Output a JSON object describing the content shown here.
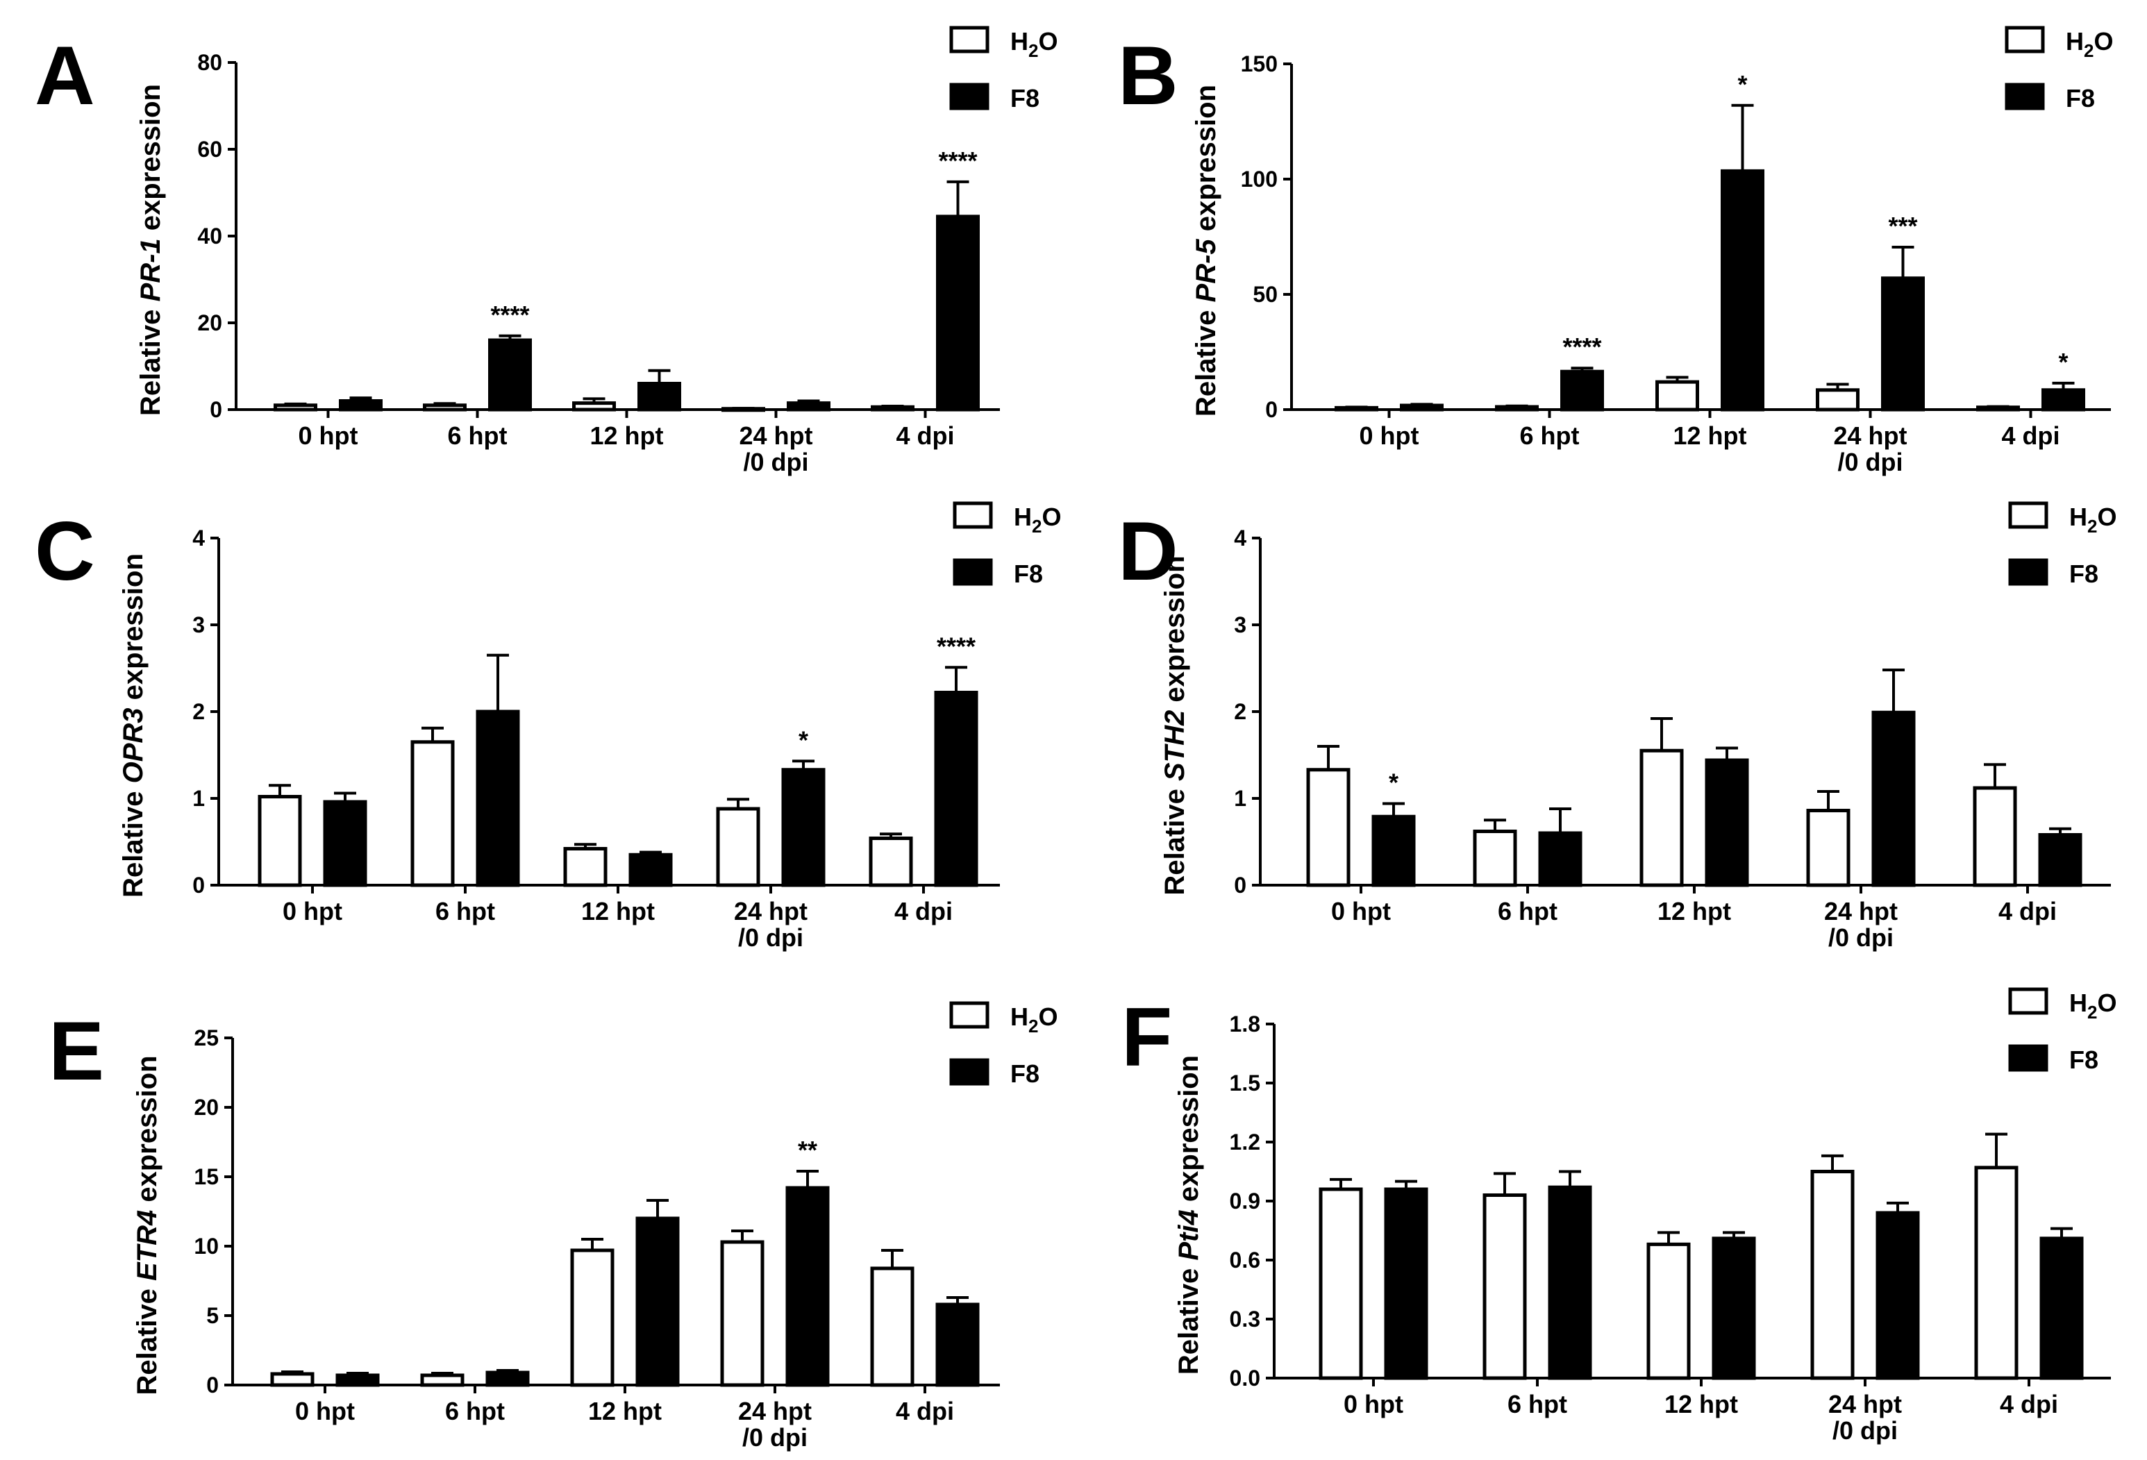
{
  "legend": {
    "series": [
      "H2O",
      "F8"
    ],
    "h2o_main": "H",
    "h2o_sub": "2",
    "h2o_tail": "O",
    "f8": "F8"
  },
  "colors": {
    "h2o_fill": "#ffffff",
    "f8_fill": "#000000",
    "stroke": "#000000"
  },
  "chart_data": [
    {
      "panel": "A",
      "type": "bar",
      "ylabel": {
        "prefix": "Relative ",
        "gene": "PR-1",
        "suffix": " expression"
      },
      "categories": [
        [
          "0 hpt"
        ],
        [
          "6 hpt"
        ],
        [
          "12 hpt"
        ],
        [
          "24 hpt",
          "/0 dpi"
        ],
        [
          "4 dpi"
        ]
      ],
      "ylim": [
        0,
        80
      ],
      "yticks": [
        "0",
        "20",
        "40",
        "60",
        "80"
      ],
      "series": [
        {
          "name": "H2O",
          "values": [
            1.0,
            1.0,
            1.5,
            0.2,
            0.6
          ],
          "errors": [
            0.3,
            0.4,
            1.0,
            0.1,
            0.2
          ]
        },
        {
          "name": "F8",
          "values": [
            2.0,
            16.0,
            6.0,
            1.5,
            44.5
          ],
          "errors": [
            0.7,
            1.0,
            3.0,
            0.5,
            8.0
          ]
        }
      ],
      "significance": [
        "",
        "****",
        "",
        "",
        "****"
      ]
    },
    {
      "panel": "B",
      "type": "bar",
      "ylabel": {
        "prefix": "Relative ",
        "gene": "PR-5",
        "suffix": " expression"
      },
      "categories": [
        [
          "0 hpt"
        ],
        [
          "6 hpt"
        ],
        [
          "12 hpt"
        ],
        [
          "24 hpt",
          "/0 dpi"
        ],
        [
          "4 dpi"
        ]
      ],
      "ylim": [
        0,
        150
      ],
      "yticks": [
        "0",
        "50",
        "100",
        "150"
      ],
      "series": [
        {
          "name": "H2O",
          "values": [
            0.8,
            1.2,
            12.0,
            8.5,
            1.0
          ],
          "errors": [
            0.3,
            0.4,
            2.0,
            2.5,
            0.3
          ]
        },
        {
          "name": "F8",
          "values": [
            1.8,
            16.5,
            103.5,
            57.0,
            8.5
          ],
          "errors": [
            0.5,
            1.5,
            28.5,
            13.5,
            3.0
          ]
        }
      ],
      "significance": [
        "",
        "****",
        "*",
        "***",
        "*"
      ]
    },
    {
      "panel": "C",
      "type": "bar",
      "ylabel": {
        "prefix": "Relative ",
        "gene": "OPR3",
        "suffix": " expression"
      },
      "categories": [
        [
          "0 hpt"
        ],
        [
          "6 hpt"
        ],
        [
          "12 hpt"
        ],
        [
          "24 hpt",
          "/0 dpi"
        ],
        [
          "4 dpi"
        ]
      ],
      "ylim": [
        0,
        4
      ],
      "yticks": [
        "0",
        "1",
        "2",
        "3",
        "4"
      ],
      "series": [
        {
          "name": "H2O",
          "values": [
            1.02,
            1.65,
            0.42,
            0.88,
            0.54
          ],
          "errors": [
            0.13,
            0.16,
            0.05,
            0.11,
            0.05
          ]
        },
        {
          "name": "F8",
          "values": [
            0.96,
            2.0,
            0.35,
            1.33,
            2.22
          ],
          "errors": [
            0.1,
            0.65,
            0.03,
            0.1,
            0.29
          ]
        }
      ],
      "significance": [
        "",
        "",
        "",
        "*",
        "****"
      ]
    },
    {
      "panel": "D",
      "type": "bar",
      "ylabel": {
        "prefix": "Relative ",
        "gene": "STH2",
        "suffix": " expression"
      },
      "categories": [
        [
          "0 hpt"
        ],
        [
          "6 hpt"
        ],
        [
          "12 hpt"
        ],
        [
          "24 hpt",
          "/0 dpi"
        ],
        [
          "4 dpi"
        ]
      ],
      "ylim": [
        0,
        4
      ],
      "yticks": [
        "0",
        "1",
        "2",
        "3",
        "4"
      ],
      "series": [
        {
          "name": "H2O",
          "values": [
            1.33,
            0.62,
            1.55,
            0.86,
            1.12
          ],
          "errors": [
            0.27,
            0.13,
            0.37,
            0.22,
            0.27
          ]
        },
        {
          "name": "F8",
          "values": [
            0.79,
            0.6,
            1.44,
            1.99,
            0.58
          ],
          "errors": [
            0.15,
            0.28,
            0.14,
            0.49,
            0.07
          ]
        }
      ],
      "significance": [
        "*",
        "",
        "",
        "",
        ""
      ]
    },
    {
      "panel": "E",
      "type": "bar",
      "ylabel": {
        "prefix": "Relative ",
        "gene": "ETR4",
        "suffix": " expression"
      },
      "categories": [
        [
          "0 hpt"
        ],
        [
          "6 hpt"
        ],
        [
          "12 hpt"
        ],
        [
          "24 hpt",
          "/0 dpi"
        ],
        [
          "4 dpi"
        ]
      ],
      "ylim": [
        0,
        25
      ],
      "yticks": [
        "0",
        "5",
        "10",
        "15",
        "20",
        "25"
      ],
      "series": [
        {
          "name": "H2O",
          "values": [
            0.8,
            0.7,
            9.7,
            10.3,
            8.4
          ],
          "errors": [
            0.15,
            0.15,
            0.8,
            0.8,
            1.3
          ]
        },
        {
          "name": "F8",
          "values": [
            0.7,
            0.9,
            12.0,
            14.2,
            5.8
          ],
          "errors": [
            0.15,
            0.15,
            1.3,
            1.2,
            0.5
          ]
        }
      ],
      "significance": [
        "",
        "",
        "",
        "**",
        ""
      ]
    },
    {
      "panel": "F",
      "type": "bar",
      "ylabel": {
        "prefix": "Relative ",
        "gene": "Pti4",
        "suffix": " expression"
      },
      "categories": [
        [
          "0 hpt"
        ],
        [
          "6 hpt"
        ],
        [
          "12 hpt"
        ],
        [
          "24 hpt",
          "/0 dpi"
        ],
        [
          "4 dpi"
        ]
      ],
      "ylim": [
        0,
        1.8
      ],
      "yticks": [
        "0.0",
        "0.3",
        "0.6",
        "0.9",
        "1.2",
        "1.5",
        "1.8"
      ],
      "series": [
        {
          "name": "H2O",
          "values": [
            0.96,
            0.93,
            0.68,
            1.05,
            1.07
          ],
          "errors": [
            0.05,
            0.11,
            0.06,
            0.08,
            0.17
          ]
        },
        {
          "name": "F8",
          "values": [
            0.96,
            0.97,
            0.71,
            0.84,
            0.71
          ],
          "errors": [
            0.04,
            0.08,
            0.03,
            0.05,
            0.05
          ]
        }
      ],
      "significance": [
        "",
        "",
        "",
        "",
        ""
      ]
    }
  ]
}
